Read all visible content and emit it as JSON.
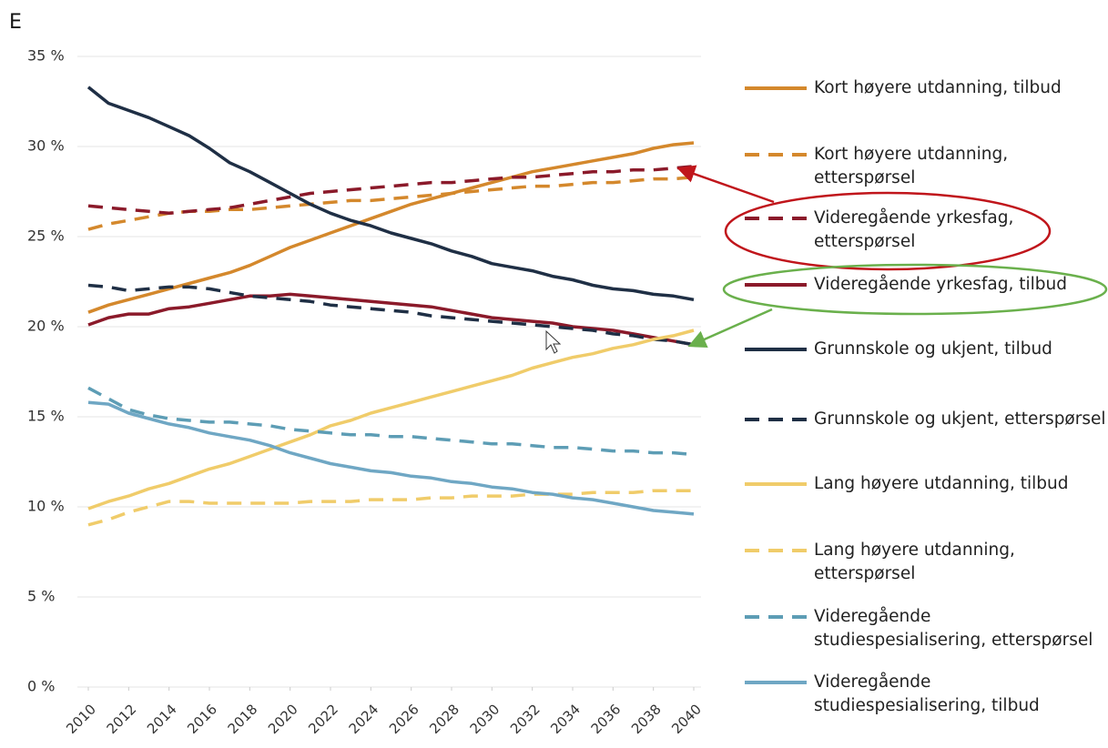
{
  "page_label": "E",
  "chart_data": {
    "type": "line",
    "x": [
      2010,
      2011,
      2012,
      2013,
      2014,
      2015,
      2016,
      2017,
      2018,
      2019,
      2020,
      2021,
      2022,
      2023,
      2024,
      2025,
      2026,
      2027,
      2028,
      2029,
      2030,
      2031,
      2032,
      2033,
      2034,
      2035,
      2036,
      2037,
      2038,
      2039,
      2040
    ],
    "xlim": [
      2010,
      2040
    ],
    "xticks": [
      2010,
      2012,
      2014,
      2016,
      2018,
      2020,
      2022,
      2024,
      2026,
      2028,
      2030,
      2032,
      2034,
      2036,
      2038,
      2040
    ],
    "ylim": [
      0,
      35
    ],
    "yticks": [
      {
        "value": 0,
        "label": "0 %"
      },
      {
        "value": 5,
        "label": "5 %"
      },
      {
        "value": 10,
        "label": "10 %"
      },
      {
        "value": 15,
        "label": "15 %"
      },
      {
        "value": 20,
        "label": "20 %"
      },
      {
        "value": 25,
        "label": "25 %"
      },
      {
        "value": 30,
        "label": "30 %"
      },
      {
        "value": 35,
        "label": "35 %"
      }
    ],
    "grid": true,
    "legend": "right",
    "series": [
      {
        "name": "Kort høyere utdanning, tilbud",
        "color": "#d4882c",
        "dashed": false,
        "values": [
          20.8,
          21.2,
          21.5,
          21.8,
          22.1,
          22.4,
          22.7,
          23.0,
          23.4,
          23.9,
          24.4,
          24.8,
          25.2,
          25.6,
          26.0,
          26.4,
          26.8,
          27.1,
          27.4,
          27.7,
          28.0,
          28.3,
          28.6,
          28.8,
          29.0,
          29.2,
          29.4,
          29.6,
          29.9,
          30.1,
          30.2
        ]
      },
      {
        "name": "Kort høyere utdanning, etterspørsel",
        "color": "#d4882c",
        "dashed": true,
        "values": [
          25.4,
          25.7,
          25.9,
          26.1,
          26.3,
          26.4,
          26.4,
          26.5,
          26.5,
          26.6,
          26.7,
          26.8,
          26.9,
          27.0,
          27.0,
          27.1,
          27.2,
          27.3,
          27.4,
          27.5,
          27.6,
          27.7,
          27.8,
          27.8,
          27.9,
          28.0,
          28.0,
          28.1,
          28.2,
          28.2,
          28.3
        ]
      },
      {
        "name": "Videregående yrkesfag, etterspørsel",
        "color": "#8b1a2a",
        "dashed": true,
        "values": [
          26.7,
          26.6,
          26.5,
          26.4,
          26.3,
          26.4,
          26.5,
          26.6,
          26.8,
          27.0,
          27.2,
          27.4,
          27.5,
          27.6,
          27.7,
          27.8,
          27.9,
          28.0,
          28.0,
          28.1,
          28.2,
          28.3,
          28.3,
          28.4,
          28.5,
          28.6,
          28.6,
          28.7,
          28.7,
          28.8,
          28.9
        ]
      },
      {
        "name": "Videregående yrkesfag, tilbud",
        "color": "#8b1a2a",
        "dashed": false,
        "values": [
          20.1,
          20.5,
          20.7,
          20.7,
          21.0,
          21.1,
          21.3,
          21.5,
          21.7,
          21.7,
          21.8,
          21.7,
          21.6,
          21.5,
          21.4,
          21.3,
          21.2,
          21.1,
          20.9,
          20.7,
          20.5,
          20.4,
          20.3,
          20.2,
          20.0,
          19.9,
          19.8,
          19.6,
          19.4,
          19.2,
          19.0
        ]
      },
      {
        "name": "Grunnskole og ukjent, tilbud",
        "color": "#1f2f45",
        "dashed": false,
        "values": [
          33.3,
          32.4,
          32.0,
          31.6,
          31.1,
          30.6,
          29.9,
          29.1,
          28.6,
          28.0,
          27.4,
          26.8,
          26.3,
          25.9,
          25.6,
          25.2,
          24.9,
          24.6,
          24.2,
          23.9,
          23.5,
          23.3,
          23.1,
          22.8,
          22.6,
          22.3,
          22.1,
          22.0,
          21.8,
          21.7,
          21.5
        ]
      },
      {
        "name": "Grunnskole og ukjent, etterspørsel",
        "color": "#1f2f45",
        "dashed": true,
        "values": [
          22.3,
          22.2,
          22.0,
          22.1,
          22.2,
          22.2,
          22.1,
          21.9,
          21.7,
          21.6,
          21.5,
          21.4,
          21.2,
          21.1,
          21.0,
          20.9,
          20.8,
          20.6,
          20.5,
          20.4,
          20.3,
          20.2,
          20.1,
          20.0,
          19.9,
          19.8,
          19.6,
          19.5,
          19.3,
          19.2,
          19.0
        ]
      },
      {
        "name": "Lang høyere utdanning, tilbud",
        "color": "#f0cc6a",
        "dashed": false,
        "values": [
          9.9,
          10.3,
          10.6,
          11.0,
          11.3,
          11.7,
          12.1,
          12.4,
          12.8,
          13.2,
          13.6,
          14.0,
          14.5,
          14.8,
          15.2,
          15.5,
          15.8,
          16.1,
          16.4,
          16.7,
          17.0,
          17.3,
          17.7,
          18.0,
          18.3,
          18.5,
          18.8,
          19.0,
          19.3,
          19.5,
          19.8
        ]
      },
      {
        "name": "Lang høyere utdanning, etterspørsel",
        "color": "#f0cc6a",
        "dashed": true,
        "values": [
          9.0,
          9.3,
          9.7,
          10.0,
          10.3,
          10.3,
          10.2,
          10.2,
          10.2,
          10.2,
          10.2,
          10.3,
          10.3,
          10.3,
          10.4,
          10.4,
          10.4,
          10.5,
          10.5,
          10.6,
          10.6,
          10.6,
          10.7,
          10.7,
          10.7,
          10.8,
          10.8,
          10.8,
          10.9,
          10.9,
          10.9
        ]
      },
      {
        "name": "Videregående studiespesialisering, etterspørsel",
        "color": "#5d9db5",
        "dashed": true,
        "values": [
          16.6,
          16.0,
          15.4,
          15.1,
          14.9,
          14.8,
          14.7,
          14.7,
          14.6,
          14.5,
          14.3,
          14.2,
          14.1,
          14.0,
          14.0,
          13.9,
          13.9,
          13.8,
          13.7,
          13.6,
          13.5,
          13.5,
          13.4,
          13.3,
          13.3,
          13.2,
          13.1,
          13.1,
          13.0,
          13.0,
          12.9
        ]
      },
      {
        "name": "Videregående studiespesialisering, tilbud",
        "color": "#6fa7c4",
        "dashed": false,
        "values": [
          15.8,
          15.7,
          15.2,
          14.9,
          14.6,
          14.4,
          14.1,
          13.9,
          13.7,
          13.4,
          13.0,
          12.7,
          12.4,
          12.2,
          12.0,
          11.9,
          11.7,
          11.6,
          11.4,
          11.3,
          11.1,
          11.0,
          10.8,
          10.7,
          10.5,
          10.4,
          10.2,
          10.0,
          9.8,
          9.7,
          9.6
        ]
      }
    ]
  }
}
